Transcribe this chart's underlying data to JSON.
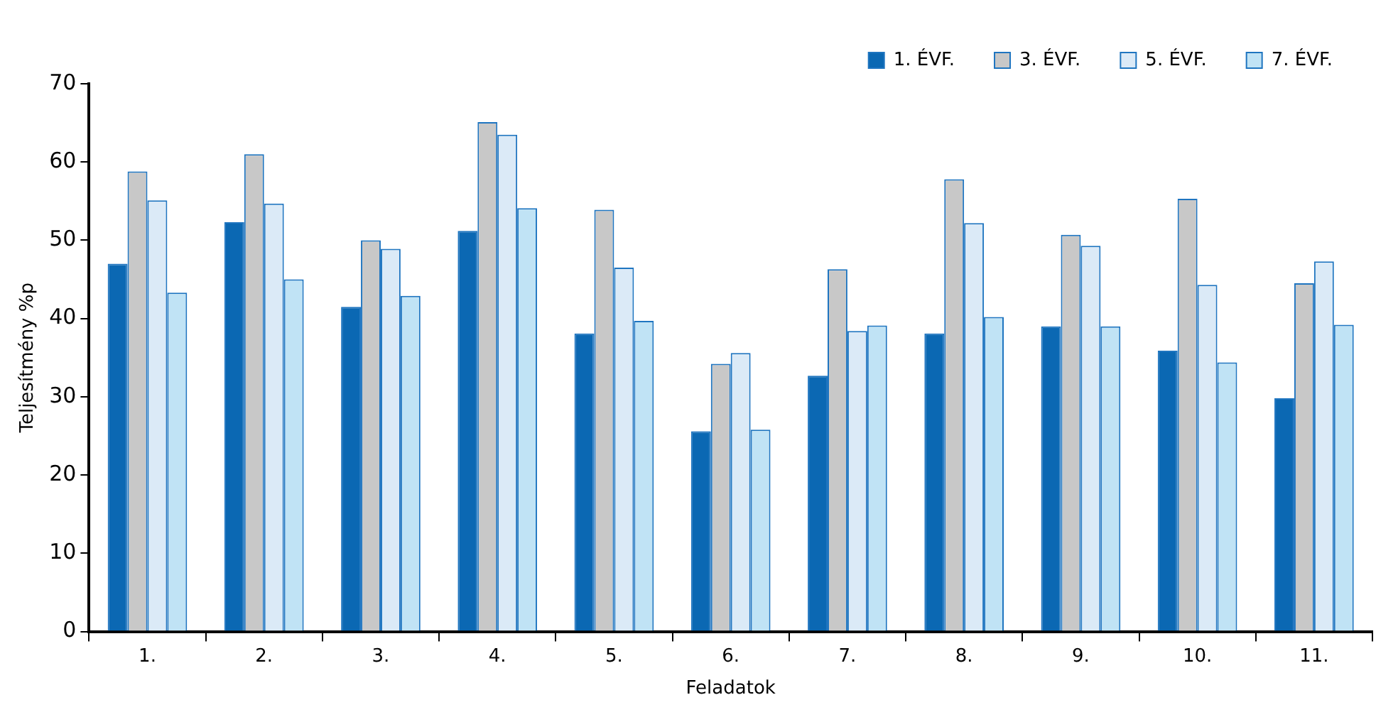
{
  "chart_data": {
    "type": "bar",
    "xlabel": "Feladatok",
    "ylabel": "Teljesítmény %p",
    "categories": [
      "1.",
      "2.",
      "3.",
      "4.",
      "5.",
      "6.",
      "7.",
      "8.",
      "9.",
      "10.",
      "11."
    ],
    "series": [
      {
        "name": "1. ÉVF.",
        "color": "#0b68b3",
        "values": [
          47.0,
          52.3,
          41.5,
          51.2,
          38.1,
          25.6,
          32.7,
          38.1,
          39.0,
          35.9,
          29.8
        ]
      },
      {
        "name": "3. ÉVF.",
        "color": "#c8c8c8",
        "values": [
          58.8,
          61.0,
          50.0,
          65.1,
          53.9,
          34.2,
          46.3,
          57.8,
          50.7,
          55.3,
          44.5
        ]
      },
      {
        "name": "5. ÉVF.",
        "color": "#dbeaf7",
        "values": [
          55.1,
          54.7,
          48.9,
          63.5,
          46.5,
          35.6,
          38.4,
          52.2,
          49.3,
          44.3,
          47.3
        ]
      },
      {
        "name": "7. ÉVF.",
        "color": "#c0e3f5",
        "values": [
          43.3,
          45.0,
          42.9,
          54.1,
          39.7,
          25.8,
          39.1,
          40.2,
          39.0,
          34.4,
          39.2
        ]
      }
    ],
    "ylim": [
      0,
      70
    ],
    "yticks": [
      0,
      10,
      20,
      30,
      40,
      50,
      60,
      70
    ],
    "grid": false,
    "legend": "top right"
  }
}
